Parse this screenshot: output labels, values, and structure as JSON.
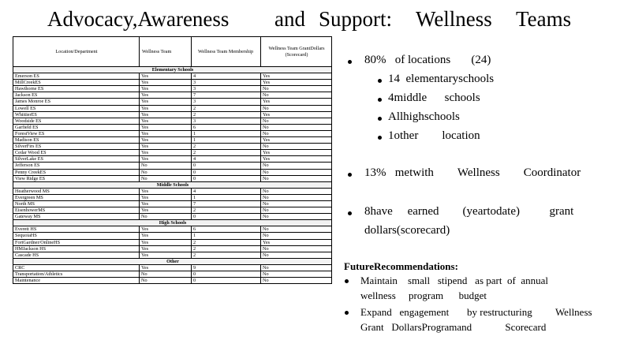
{
  "title": {
    "part1": "Advocacy,Awareness",
    "part2": "and",
    "part3": "Support:",
    "part4": "Wellness",
    "part5": "Teams"
  },
  "table": {
    "headers": {
      "location": "Location/Department",
      "wellness_team": "Wellness Team",
      "membership": "Wellness Team Membership",
      "grant": "Wellness Team GrantDollars (Scorecard)"
    },
    "sections": [
      {
        "label": "Elementary Schools",
        "rows": [
          [
            "Emerson ES",
            "Yes",
            "4",
            "Yes"
          ],
          [
            "MillCreekES",
            "Yes",
            "3",
            "Yes"
          ],
          [
            "Hawthorne ES",
            "Yes",
            "3",
            "No"
          ],
          [
            "Jackson ES",
            "Yes",
            "7",
            "No"
          ],
          [
            "James Monroe ES",
            "Yes",
            "3",
            "Yes"
          ],
          [
            "Lowell ES",
            "Yes",
            "2",
            "No"
          ],
          [
            "WhittierES",
            "Yes",
            "2",
            "Yes"
          ],
          [
            "Woodside ES",
            "Yes",
            "3",
            "No"
          ],
          [
            "Garfield ES",
            "Yes",
            "6",
            "No"
          ],
          [
            "ForestView ES",
            "Yes",
            "1",
            "No"
          ],
          [
            "Madison ES",
            "Yes",
            "1",
            "Yes"
          ],
          [
            "SilverFirs ES",
            "Yes",
            "2",
            "No"
          ],
          [
            "Cedar Wood ES",
            "Yes",
            "2",
            "Yes"
          ],
          [
            "SilverLake ES",
            "Yes",
            "4",
            "Yes"
          ],
          [
            "Jefferson ES",
            "No",
            "0",
            "No"
          ],
          [
            "Penny CreekES",
            "No",
            "0",
            "No"
          ],
          [
            "View Ridge ES",
            "No",
            "0",
            "No"
          ]
        ]
      },
      {
        "label": "Middle Schools",
        "rows": [
          [
            "Heatherwood MS",
            "Yes",
            "4",
            "No"
          ],
          [
            "Evergreen MS",
            "Yes",
            "1",
            "No"
          ],
          [
            "North MS",
            "Yes",
            "7",
            "No"
          ],
          [
            "EisenhowerMS",
            "Yes",
            "2",
            "No"
          ],
          [
            "Gateway MS",
            "No",
            "0",
            "No"
          ]
        ]
      },
      {
        "label": "High Schools",
        "rows": [
          [
            "Everett HS",
            "Yes",
            "6",
            "No"
          ],
          [
            "SequoiaHS",
            "Yes",
            "1",
            "No"
          ],
          [
            "FortGardner/OnlineHS",
            "Yes",
            "2",
            "Yes"
          ],
          [
            "HMJackson HS",
            "Yes",
            "2",
            "No"
          ],
          [
            "Cascade HS",
            "Yes",
            "2",
            "No"
          ]
        ]
      },
      {
        "label": "Other",
        "rows": [
          [
            "CRC",
            "Yes",
            "9",
            "No"
          ],
          [
            "Transportation/Athletics",
            "No",
            "0",
            "No"
          ],
          [
            "Maintenance",
            "No",
            "0",
            "No"
          ]
        ]
      }
    ]
  },
  "stats": {
    "locations": {
      "pct": "80%",
      "of": "of",
      "word": "locations",
      "count": "(24)"
    },
    "sub": [
      {
        "a": "14",
        "b": "elementaryschools"
      },
      {
        "a": "4middle",
        "b": "schools"
      },
      {
        "a": "Allhighschools",
        "b": ""
      },
      {
        "a": "1other",
        "b": "location"
      }
    ],
    "coordinator": {
      "a": "13%",
      "b": "metwith",
      "c": "Wellness",
      "d": "Coordinator"
    },
    "grant": {
      "a": "8have",
      "b": "earned",
      "c": "(yeartodate)",
      "d": "grant",
      "e": "dollars(scorecard)"
    }
  },
  "future": {
    "title": "FutureRecommendations:",
    "items": [
      {
        "l1a": "Maintain",
        "l1b": "small",
        "l1c": "stipend",
        "l1d": "as part",
        "l1e": "of",
        "l1f": "annual",
        "l2a": "wellness",
        "l2b": "program",
        "l2c": "budget"
      },
      {
        "l1a": "Expand",
        "l1b": "engagement",
        "l1c": "by restructuring",
        "l1d": "Wellness",
        "l2a": "Grant",
        "l2b": "DollarsProgramand",
        "l2c": "Scorecard"
      }
    ]
  }
}
